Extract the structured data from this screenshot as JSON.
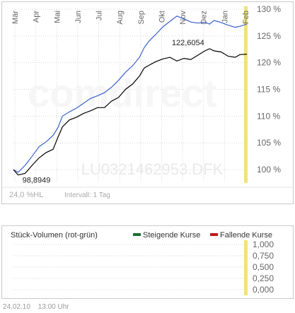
{
  "watermark": {
    "brand": "comdirect",
    "symbol": "LU0321462953.DFK"
  },
  "colors": {
    "series_main": "#000000",
    "series_compare": "#3a5fcd",
    "highlight": "#f3e27a",
    "grid": "#d6d6d6",
    "axis_text": "#666666",
    "rising": "#1b6e35",
    "falling": "#c0181c"
  },
  "price_info": {
    "range_label": "24,0 %HL",
    "interval_label": "Intervall: 1 Tag"
  },
  "volume": {
    "title": "Stück-Volumen (rot-grün)",
    "legend_rising": "Steigende Kurse",
    "legend_falling": "Fallende Kurse",
    "ticks": [
      "1,000",
      "0,750",
      "0,500",
      "0,250",
      "0,000"
    ]
  },
  "footer": {
    "date": "24.02.10",
    "time": "13:00 Uhr"
  },
  "chart_data": {
    "type": "line",
    "x_axis_months": [
      "Mär",
      "Apr",
      "Mai",
      "Jun",
      "Jul",
      "Aug",
      "Sep",
      "Okt",
      "Nov",
      "Dez",
      "Jan",
      "Feb"
    ],
    "y_axis_ticks": [
      "130 %",
      "125 %",
      "120 %",
      "115 %",
      "110 %",
      "105 %",
      "100 %"
    ],
    "ylim": [
      97.5,
      130
    ],
    "annotations": [
      {
        "label": "98,8949",
        "x": 0.02,
        "y": 98.9
      },
      {
        "label": "122,6054",
        "x": 0.83,
        "y": 122.6
      }
    ],
    "series": [
      {
        "color": "black",
        "points": [
          [
            0.0,
            100.0
          ],
          [
            0.02,
            99.0
          ],
          [
            0.05,
            99.3
          ],
          [
            0.08,
            100.8
          ],
          [
            0.11,
            102.2
          ],
          [
            0.14,
            103.2
          ],
          [
            0.17,
            103.8
          ],
          [
            0.19,
            106.0
          ],
          [
            0.21,
            108.0
          ],
          [
            0.24,
            109.3
          ],
          [
            0.27,
            109.8
          ],
          [
            0.3,
            110.5
          ],
          [
            0.33,
            111.0
          ],
          [
            0.36,
            111.6
          ],
          [
            0.39,
            111.6
          ],
          [
            0.42,
            112.8
          ],
          [
            0.45,
            113.5
          ],
          [
            0.48,
            115.0
          ],
          [
            0.51,
            116.0
          ],
          [
            0.54,
            117.5
          ],
          [
            0.56,
            119.0
          ],
          [
            0.58,
            119.5
          ],
          [
            0.61,
            120.2
          ],
          [
            0.64,
            120.7
          ],
          [
            0.67,
            121.0
          ],
          [
            0.7,
            120.3
          ],
          [
            0.73,
            120.8
          ],
          [
            0.76,
            120.6
          ],
          [
            0.79,
            121.4
          ],
          [
            0.82,
            122.2
          ],
          [
            0.84,
            122.6
          ],
          [
            0.86,
            122.2
          ],
          [
            0.89,
            122.0
          ],
          [
            0.92,
            121.2
          ],
          [
            0.95,
            121.0
          ],
          [
            0.97,
            121.5
          ],
          [
            1.0,
            121.6
          ]
        ]
      },
      {
        "color": "blue",
        "points": [
          [
            0.0,
            100.0
          ],
          [
            0.02,
            99.5
          ],
          [
            0.05,
            100.8
          ],
          [
            0.08,
            102.5
          ],
          [
            0.11,
            104.3
          ],
          [
            0.14,
            105.2
          ],
          [
            0.17,
            106.4
          ],
          [
            0.19,
            107.8
          ],
          [
            0.21,
            110.0
          ],
          [
            0.24,
            110.8
          ],
          [
            0.27,
            111.5
          ],
          [
            0.3,
            112.4
          ],
          [
            0.33,
            113.3
          ],
          [
            0.36,
            113.8
          ],
          [
            0.39,
            114.4
          ],
          [
            0.42,
            115.4
          ],
          [
            0.45,
            116.7
          ],
          [
            0.48,
            118.2
          ],
          [
            0.51,
            119.4
          ],
          [
            0.54,
            121.0
          ],
          [
            0.56,
            122.8
          ],
          [
            0.58,
            124.0
          ],
          [
            0.61,
            125.3
          ],
          [
            0.64,
            126.7
          ],
          [
            0.67,
            127.7
          ],
          [
            0.7,
            128.7
          ],
          [
            0.73,
            128.2
          ],
          [
            0.76,
            127.6
          ],
          [
            0.79,
            127.4
          ],
          [
            0.82,
            127.6
          ],
          [
            0.84,
            127.2
          ],
          [
            0.86,
            127.9
          ],
          [
            0.89,
            127.5
          ],
          [
            0.92,
            127.0
          ],
          [
            0.95,
            126.6
          ],
          [
            0.97,
            126.8
          ],
          [
            1.0,
            127.2
          ]
        ]
      }
    ]
  }
}
